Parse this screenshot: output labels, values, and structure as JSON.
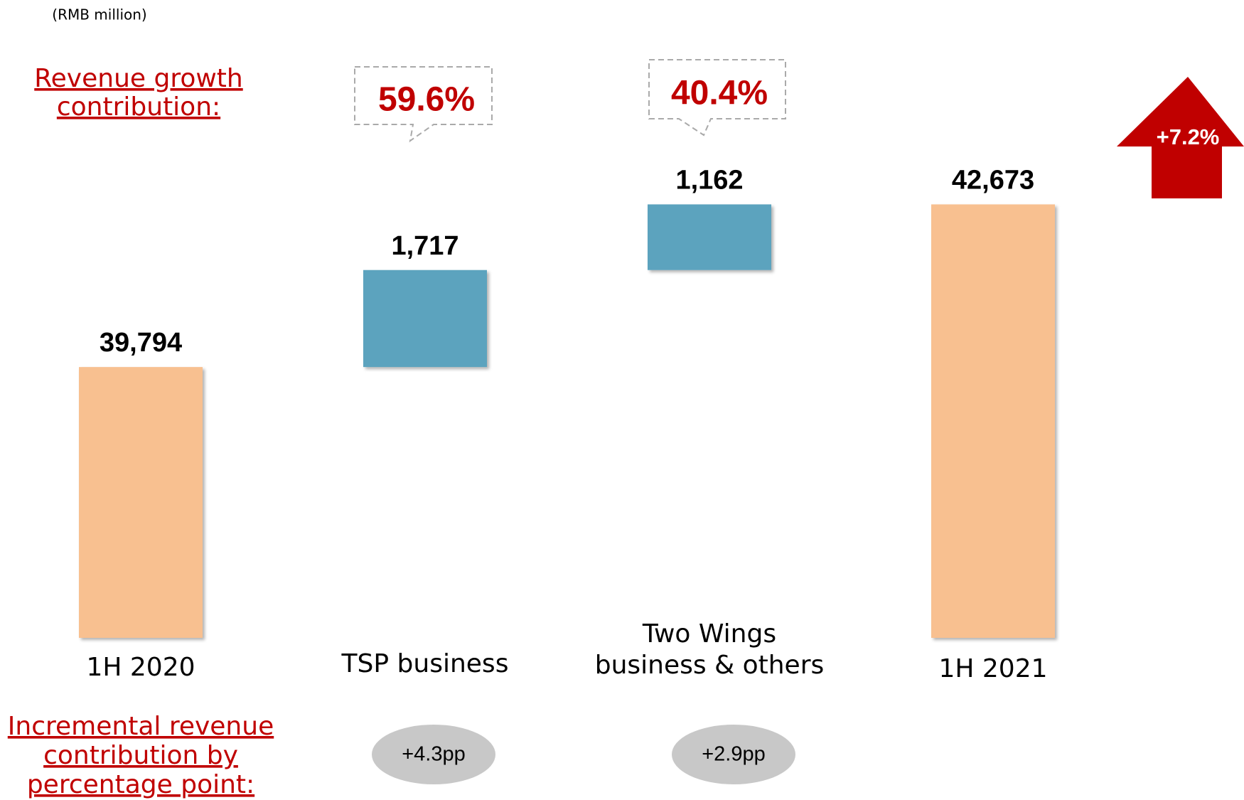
{
  "chart_data": {
    "type": "waterfall",
    "unit": "(RMB million)",
    "categories": [
      "1H 2020",
      "TSP business",
      "Two Wings\nbusiness & others",
      "1H 2021"
    ],
    "values": [
      39794,
      1717,
      1162,
      42673
    ],
    "value_labels": [
      "39,794",
      "1,717",
      "1,162",
      "42,673"
    ],
    "kinds": [
      "total",
      "delta",
      "delta",
      "total"
    ],
    "colors": {
      "total": "#F8C090",
      "delta": "#5BA3BE"
    },
    "ylim": [
      35000,
      44000
    ],
    "growth_label": "Revenue growth\ncontribution:",
    "growth_contributions": [
      "59.6%",
      "40.4%"
    ],
    "total_growth": "+7.2%",
    "increment_label": "Incremental revenue\ncontribution by\npercentage point:",
    "increments": [
      "+4.3pp",
      "+2.9pp"
    ]
  }
}
